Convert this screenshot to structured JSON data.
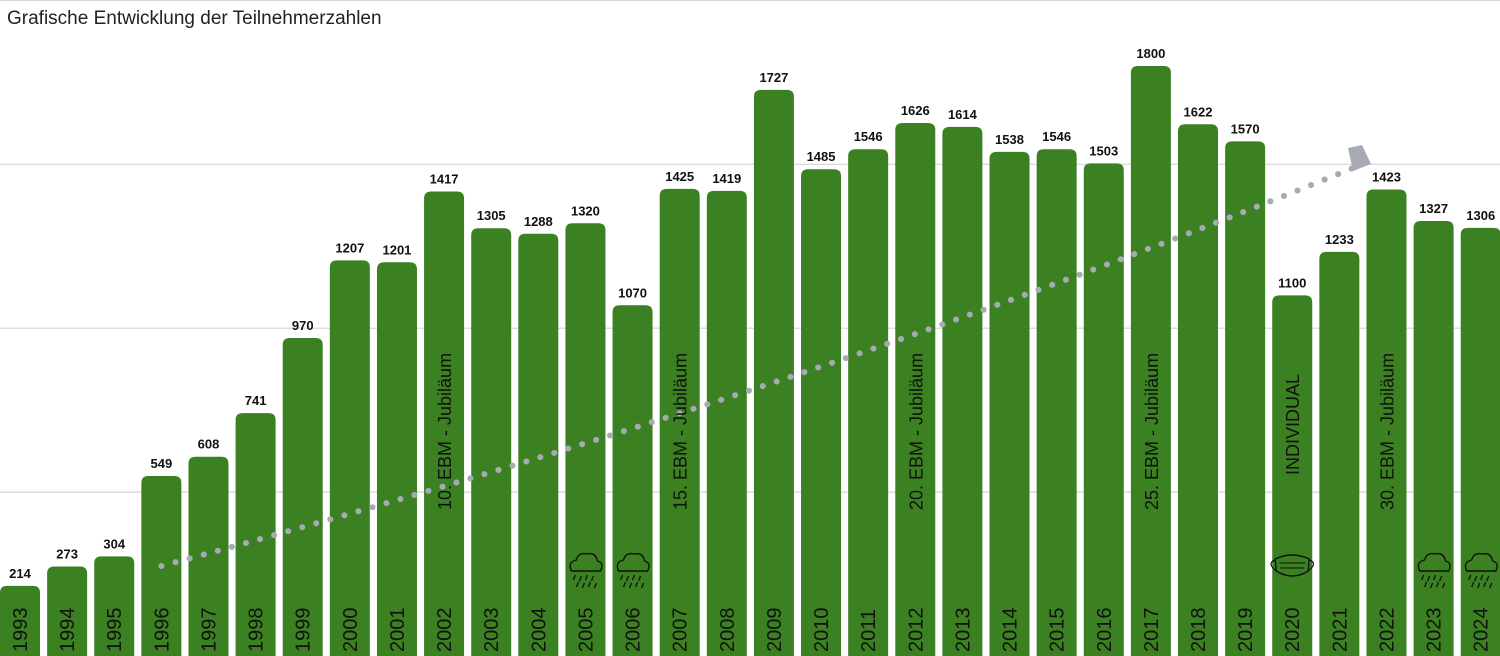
{
  "title": "Grafische Entwicklung der Teilnehmerzahlen",
  "colors": {
    "bar": "#3b8021",
    "grid": "#d4d4d4",
    "trend": "#a6aab3",
    "label": "#111111"
  },
  "chart_data": {
    "type": "bar",
    "title": "Grafische Entwicklung der Teilnehmerzahlen",
    "xlabel": "",
    "ylabel": "",
    "ylim": [
      0,
      2000
    ],
    "grid": true,
    "categories": [
      "1993",
      "1994",
      "1995",
      "1996",
      "1997",
      "1998",
      "1999",
      "2000",
      "2001",
      "2002",
      "2003",
      "2004",
      "2005",
      "2006",
      "2007",
      "2008",
      "2009",
      "2010",
      "2011",
      "2012",
      "2013",
      "2014",
      "2015",
      "2016",
      "2017",
      "2018",
      "2019",
      "2020",
      "2021",
      "2022",
      "2023",
      "2024"
    ],
    "values": [
      214,
      273,
      304,
      549,
      608,
      741,
      970,
      1207,
      1201,
      1417,
      1305,
      1288,
      1320,
      1070,
      1425,
      1419,
      1727,
      1485,
      1546,
      1626,
      1614,
      1538,
      1546,
      1503,
      1800,
      1622,
      1570,
      1100,
      1233,
      1423,
      1327,
      1306
    ],
    "annotations": [
      {
        "year": "2002",
        "text": "10. EBM - Jubiläum"
      },
      {
        "year": "2007",
        "text": "15. EBM - Jubiläum"
      },
      {
        "year": "2012",
        "text": "20. EBM - Jubiläum"
      },
      {
        "year": "2017",
        "text": "25. EBM - Jubiläum"
      },
      {
        "year": "2020",
        "text": "INDIVIDUAL"
      },
      {
        "year": "2022",
        "text": "30. EBM - Jubiläum"
      }
    ],
    "icons": [
      {
        "year": "2005",
        "icon": "rain-cloud-icon"
      },
      {
        "year": "2006",
        "icon": "rain-cloud-icon"
      },
      {
        "year": "2020",
        "icon": "face-mask-icon"
      },
      {
        "year": "2023",
        "icon": "rain-cloud-icon"
      },
      {
        "year": "2024",
        "icon": "rain-cloud-icon"
      }
    ],
    "trend": {
      "style": "dotted-arrow",
      "from": "1996",
      "to": "2022"
    }
  }
}
